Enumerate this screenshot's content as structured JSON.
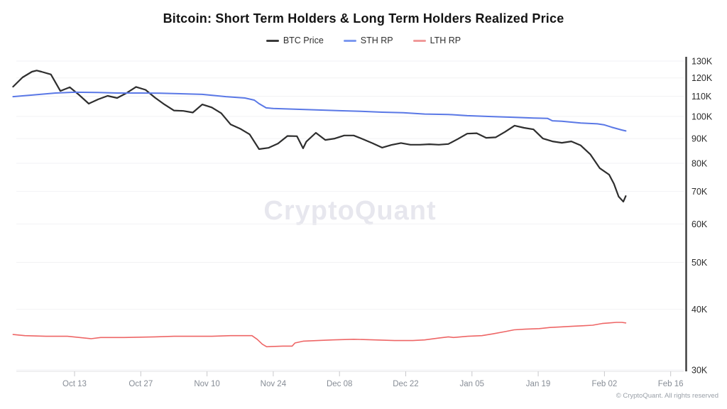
{
  "title": "Bitcoin: Short Term Holders & Long Term Holders Realized Price",
  "watermark": "CryptoQuant",
  "footer": "© CryptoQuant. All rights reserved",
  "colors": {
    "btc": "#2e2e2e",
    "sth": "#5a78e6",
    "lth": "#ee6666",
    "legend_btc": "#3a3a3a",
    "legend_sth": "#7d9af0",
    "legend_lth": "#f09a9a",
    "grid": "#f2f2f4",
    "x_axis": "#e0e0e3",
    "x_tick": "#c8c8cc",
    "y_axis": "#3a3a3a"
  },
  "legend": [
    {
      "id": "btc",
      "label": "BTC Price"
    },
    {
      "id": "sth",
      "label": "STH RP"
    },
    {
      "id": "lth",
      "label": "LTH RP"
    }
  ],
  "chart_data": {
    "type": "line",
    "title": "Bitcoin: Short Term Holders & Long Term Holders Realized Price",
    "y_scale": "log",
    "units": "thousand USD",
    "x_unit": "days since Sep 30",
    "ylim": [
      30,
      130
    ],
    "xlim": [
      0.5,
      141.5
    ],
    "grid": "horizontal-faint",
    "legend_position": "top-center",
    "y_ticks": [
      {
        "label": "130K",
        "value": 130
      },
      {
        "label": "120K",
        "value": 120
      },
      {
        "label": "110K",
        "value": 110
      },
      {
        "label": "100K",
        "value": 100
      },
      {
        "label": "90K",
        "value": 90
      },
      {
        "label": "80K",
        "value": 80
      },
      {
        "label": "70K",
        "value": 70
      },
      {
        "label": "60K",
        "value": 60
      },
      {
        "label": "50K",
        "value": 50
      },
      {
        "label": "40K",
        "value": 40
      },
      {
        "label": "30K",
        "value": 30
      }
    ],
    "x_ticks": [
      {
        "label": "Oct 13",
        "day": 13
      },
      {
        "label": "Oct 27",
        "day": 27
      },
      {
        "label": "Nov 10",
        "day": 41
      },
      {
        "label": "Nov 24",
        "day": 55
      },
      {
        "label": "Dec 08",
        "day": 69
      },
      {
        "label": "Dec 22",
        "day": 83
      },
      {
        "label": "Jan 05",
        "day": 97
      },
      {
        "label": "Jan 19",
        "day": 111
      },
      {
        "label": "Feb 02",
        "day": 125
      },
      {
        "label": "Feb 16",
        "day": 139
      }
    ],
    "series": [
      {
        "name": "BTC Price",
        "color_key": "btc",
        "width": 2.2,
        "days": [
          0,
          2,
          4,
          5,
          6,
          8,
          10,
          12,
          14,
          16,
          18,
          20,
          22,
          24,
          26,
          28,
          30,
          32,
          34,
          36,
          38,
          40,
          42,
          44,
          46,
          48,
          50,
          52,
          54,
          56,
          58,
          60,
          61.3,
          62,
          64,
          66,
          68,
          70,
          72,
          74,
          76,
          78,
          80,
          82,
          84,
          86,
          88,
          90,
          92,
          94,
          96,
          98,
          100,
          102,
          104,
          106,
          108,
          110,
          112,
          114,
          116,
          118,
          120,
          122,
          124,
          126,
          127,
          128,
          129,
          129.5
        ],
        "values": [
          115.1,
          120.3,
          123.6,
          124.3,
          123.6,
          122.0,
          112.8,
          114.8,
          110.6,
          106.2,
          108.4,
          110.2,
          109.1,
          111.7,
          115.0,
          113.4,
          109.3,
          105.8,
          102.8,
          102.6,
          101.8,
          105.8,
          104.3,
          101.5,
          96.2,
          94.3,
          91.8,
          85.6,
          86.1,
          87.9,
          91.1,
          91.0,
          85.9,
          88.7,
          92.5,
          89.4,
          90.0,
          91.3,
          91.3,
          89.7,
          88.0,
          86.2,
          87.3,
          88.1,
          87.4,
          87.4,
          87.6,
          87.4,
          87.7,
          89.8,
          92.1,
          92.3,
          90.3,
          90.5,
          92.9,
          95.7,
          94.7,
          94.0,
          90.0,
          88.8,
          88.2,
          88.8,
          87.1,
          83.5,
          78.2,
          75.8,
          72.6,
          68.3,
          66.7,
          68.5
        ]
      },
      {
        "name": "STH RP",
        "color_key": "sth",
        "width": 2,
        "days": [
          0,
          4,
          9,
          13,
          18,
          22,
          27,
          31,
          36,
          40,
          45,
          49,
          51,
          52,
          53.5,
          55,
          60,
          64,
          69,
          73.5,
          78,
          82.5,
          87,
          92,
          96,
          101,
          105,
          110,
          113,
          114,
          116,
          120,
          123.5,
          125,
          126.5,
          128,
          128.7,
          129.5
        ],
        "values": [
          109.8,
          110.6,
          111.7,
          112.1,
          112.0,
          111.7,
          111.7,
          111.6,
          111.3,
          111.0,
          109.8,
          109.1,
          108.0,
          106.2,
          104.1,
          103.8,
          103.4,
          103.1,
          102.7,
          102.4,
          102.0,
          101.7,
          101.1,
          100.9,
          100.3,
          99.9,
          99.6,
          99.2,
          99.0,
          97.9,
          97.7,
          96.9,
          96.5,
          96.0,
          95.0,
          94.1,
          93.7,
          93.3
        ]
      },
      {
        "name": "LTH RP",
        "color_key": "lth",
        "width": 1.6,
        "days": [
          0,
          2.5,
          7,
          11.5,
          16.5,
          18.5,
          23.5,
          30,
          34,
          42,
          46,
          50.5,
          51.6,
          52.7,
          53.6,
          57,
          59,
          59.6,
          61.4,
          64.4,
          67.5,
          72,
          76.5,
          80.6,
          82.1,
          84.5,
          87,
          90,
          92,
          93.1,
          96.1,
          99.1,
          101.4,
          104.1,
          105.9,
          108.2,
          111.2,
          113.5,
          115.7,
          118,
          120.3,
          122.5,
          124.5,
          126,
          127.5,
          128.7,
          129.5
        ],
        "values": [
          35.5,
          35.3,
          35.2,
          35.2,
          34.8,
          35.0,
          35.0,
          35.1,
          35.2,
          35.2,
          35.3,
          35.3,
          34.7,
          33.9,
          33.5,
          33.6,
          33.6,
          34.1,
          34.4,
          34.5,
          34.6,
          34.7,
          34.6,
          34.5,
          34.5,
          34.5,
          34.6,
          34.9,
          35.1,
          35.0,
          35.2,
          35.3,
          35.6,
          36.0,
          36.3,
          36.4,
          36.5,
          36.7,
          36.8,
          36.9,
          37.0,
          37.1,
          37.4,
          37.5,
          37.6,
          37.6,
          37.5
        ]
      }
    ]
  }
}
